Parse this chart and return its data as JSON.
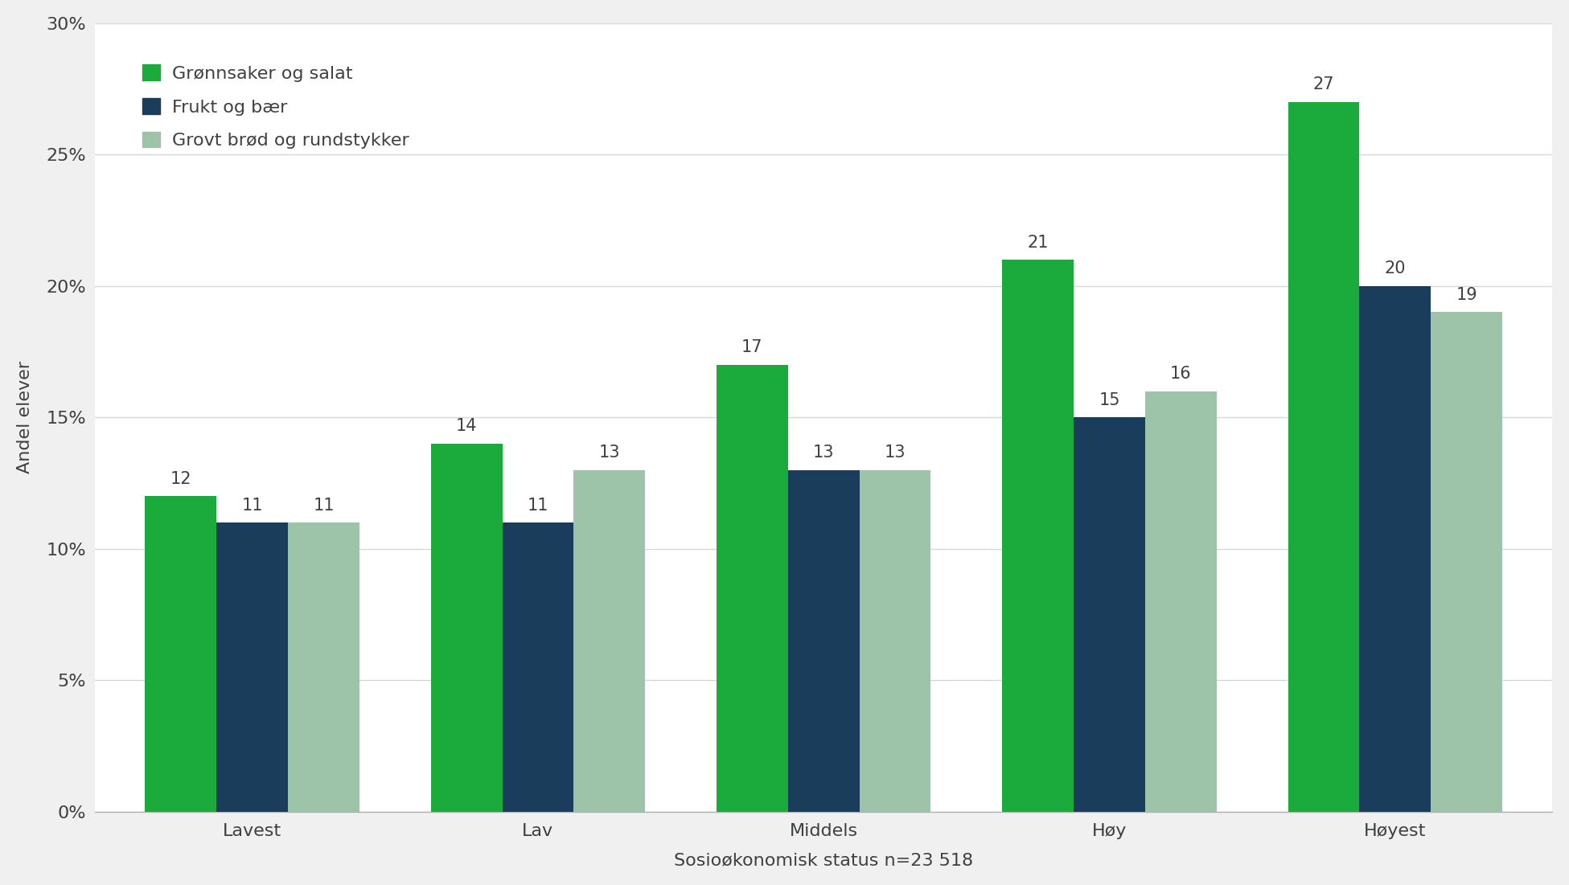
{
  "categories": [
    "Lavest",
    "Lav",
    "Middels",
    "Høy",
    "Høyest"
  ],
  "series": [
    {
      "name": "Grønnsaker og salat",
      "values": [
        12,
        14,
        17,
        21,
        27
      ],
      "color": "#1aab3c"
    },
    {
      "name": "Frukt og bær",
      "values": [
        11,
        11,
        13,
        15,
        20
      ],
      "color": "#1a3d5c"
    },
    {
      "name": "Grovt brød og rundstykker",
      "values": [
        11,
        13,
        13,
        16,
        19
      ],
      "color": "#9dc4a8"
    }
  ],
  "ylabel": "Andel elever",
  "xlabel": "Sosioøkonomisk status n=23 518",
  "ylim": [
    0,
    30
  ],
  "yticks": [
    0,
    5,
    10,
    15,
    20,
    25,
    30
  ],
  "ytick_labels": [
    "0%",
    "5%",
    "10%",
    "15%",
    "20%",
    "25%",
    "30%"
  ],
  "figure_background_color": "#f0f0f0",
  "plot_background_color": "#ffffff",
  "bar_width": 0.25,
  "annotation_fontsize": 15,
  "label_fontsize": 16,
  "tick_fontsize": 16,
  "legend_fontsize": 16,
  "xlabel_fontsize": 16,
  "grid_color": "#d8d8d8",
  "text_color": "#404040",
  "spine_color": "#b0b0b0"
}
